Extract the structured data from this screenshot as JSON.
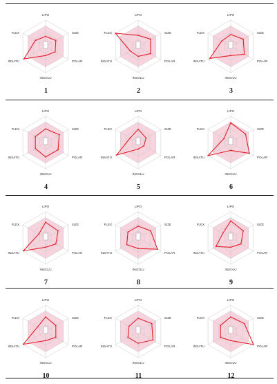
{
  "axes": [
    "LIPO",
    "SIZE",
    "POLAR",
    "INSOLU",
    "INSATU",
    "FLEX"
  ],
  "colors": {
    "series": "#e0202a",
    "fill": "#f7d3de",
    "grid": "#c9c9c9",
    "center_marker": "#9a9a9a"
  },
  "chart_data": [
    {
      "type": "radar",
      "label": "1",
      "axes": [
        "LIPO",
        "SIZE",
        "POLAR",
        "INSOLU",
        "INSATU",
        "FLEX"
      ],
      "values": [
        0.38,
        0.45,
        0.42,
        0.35,
        0.95,
        0.45
      ],
      "rmax": 1
    },
    {
      "type": "radar",
      "label": "2",
      "axes": [
        "LIPO",
        "SIZE",
        "POLAR",
        "INSOLU",
        "INSATU",
        "FLEX"
      ],
      "values": [
        0.42,
        0.55,
        0.55,
        0.38,
        0.35,
        1.0
      ],
      "rmax": 1
    },
    {
      "type": "radar",
      "label": "3",
      "axes": [
        "LIPO",
        "SIZE",
        "POLAR",
        "INSOLU",
        "INSATU",
        "FLEX"
      ],
      "values": [
        0.45,
        0.55,
        0.6,
        0.35,
        0.92,
        0.4
      ],
      "rmax": 1
    },
    {
      "type": "radar",
      "label": "4",
      "axes": [
        "LIPO",
        "SIZE",
        "POLAR",
        "INSOLU",
        "INSATU",
        "FLEX"
      ],
      "values": [
        0.52,
        0.6,
        0.55,
        0.55,
        0.45,
        0.45
      ],
      "rmax": 1
    },
    {
      "type": "radar",
      "label": "5",
      "axes": [
        "LIPO",
        "SIZE",
        "POLAR",
        "INSOLU",
        "INSATU",
        "FLEX"
      ],
      "values": [
        0.5,
        0.35,
        0.25,
        0.25,
        0.95,
        0.35
      ],
      "rmax": 1
    },
    {
      "type": "radar",
      "label": "6",
      "axes": [
        "LIPO",
        "SIZE",
        "POLAR",
        "INSOLU",
        "INSATU",
        "FLEX"
      ],
      "values": [
        0.75,
        0.65,
        0.82,
        0.3,
        1.0,
        0.3
      ],
      "rmax": 1
    },
    {
      "type": "radar",
      "label": "7",
      "axes": [
        "LIPO",
        "SIZE",
        "POLAR",
        "INSOLU",
        "INSATU",
        "FLEX"
      ],
      "values": [
        0.6,
        0.55,
        0.45,
        0.35,
        0.98,
        0.3
      ],
      "rmax": 1
    },
    {
      "type": "radar",
      "label": "8",
      "axes": [
        "LIPO",
        "SIZE",
        "POLAR",
        "INSOLU",
        "INSATU",
        "FLEX"
      ],
      "values": [
        0.45,
        0.55,
        0.85,
        0.4,
        0.5,
        0.45
      ],
      "rmax": 1
    },
    {
      "type": "radar",
      "label": "9",
      "axes": [
        "LIPO",
        "SIZE",
        "POLAR",
        "INSOLU",
        "INSATU",
        "FLEX"
      ],
      "values": [
        0.65,
        0.55,
        0.45,
        0.35,
        0.65,
        0.35
      ],
      "rmax": 1
    },
    {
      "type": "radar",
      "label": "10",
      "axes": [
        "LIPO",
        "SIZE",
        "POLAR",
        "INSOLU",
        "INSATU",
        "FLEX"
      ],
      "values": [
        0.55,
        0.45,
        0.45,
        0.35,
        0.98,
        0.35
      ],
      "rmax": 1
    },
    {
      "type": "radar",
      "label": "11",
      "axes": [
        "LIPO",
        "SIZE",
        "POLAR",
        "INSOLU",
        "INSATU",
        "FLEX"
      ],
      "values": [
        0.5,
        0.6,
        0.65,
        0.45,
        0.45,
        0.4
      ],
      "rmax": 1
    },
    {
      "type": "radar",
      "label": "12",
      "axes": [
        "LIPO",
        "SIZE",
        "POLAR",
        "INSOLU",
        "INSATU",
        "FLEX"
      ],
      "values": [
        0.55,
        0.6,
        1.0,
        0.35,
        0.45,
        0.45
      ],
      "rmax": 1
    }
  ]
}
